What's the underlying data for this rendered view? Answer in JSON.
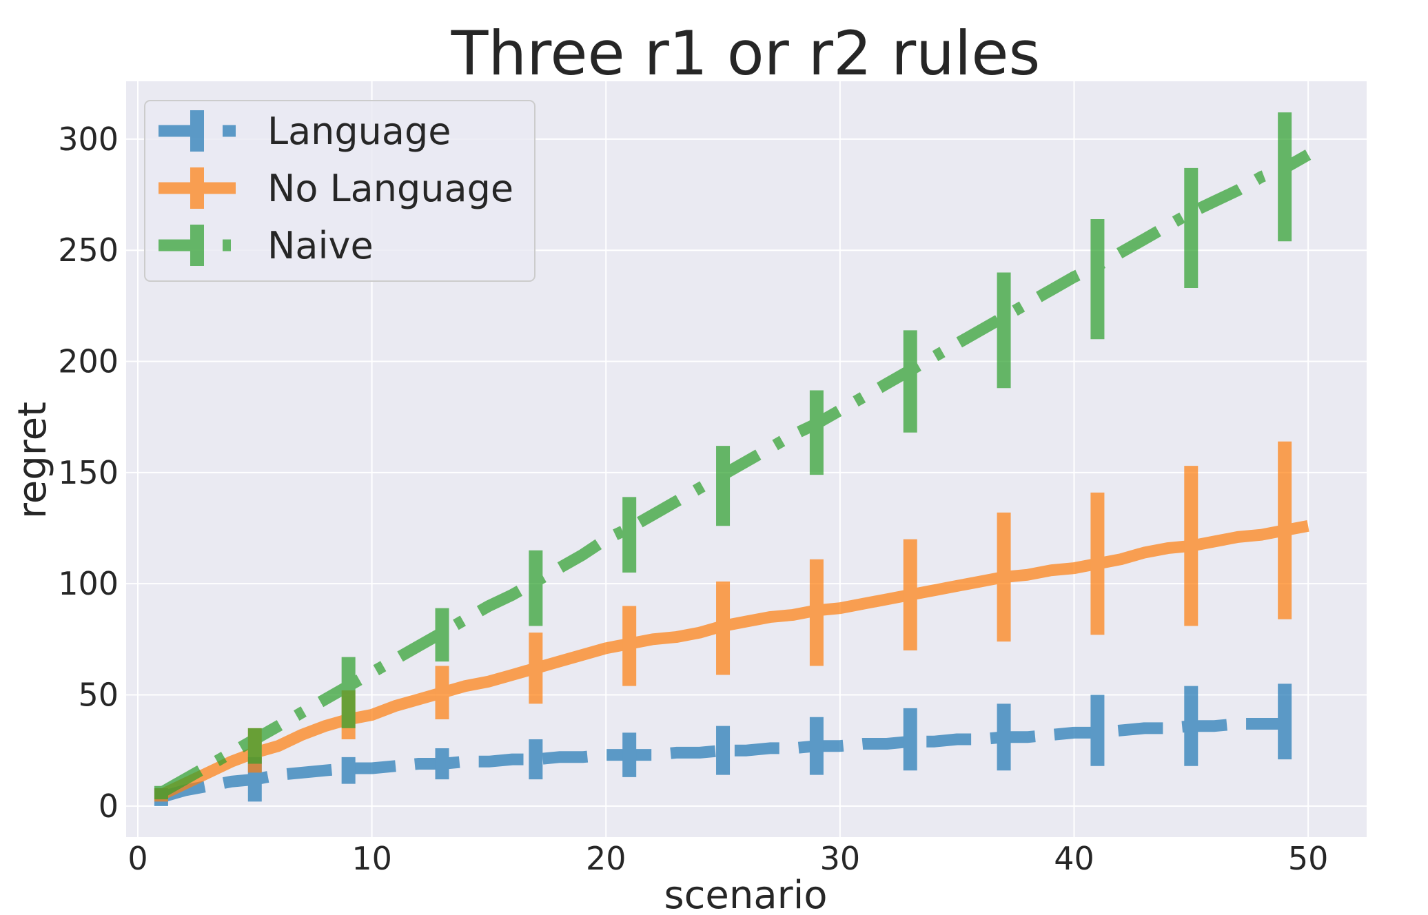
{
  "chart_data": {
    "type": "line",
    "title": "Three r1 or r2 rules",
    "xlabel": "scenario",
    "ylabel": "regret",
    "xlim": [
      -0.5,
      52.5
    ],
    "ylim": [
      -14,
      326
    ],
    "xticks": [
      0,
      10,
      20,
      30,
      40,
      50
    ],
    "yticks": [
      0,
      50,
      100,
      150,
      200,
      250,
      300
    ],
    "grid": true,
    "legend_position": "top-left",
    "x": [
      1,
      2,
      3,
      4,
      5,
      6,
      7,
      8,
      9,
      10,
      11,
      12,
      13,
      14,
      15,
      16,
      17,
      18,
      19,
      20,
      21,
      22,
      23,
      24,
      25,
      26,
      27,
      28,
      29,
      30,
      31,
      32,
      33,
      34,
      35,
      36,
      37,
      38,
      39,
      40,
      41,
      42,
      43,
      44,
      45,
      46,
      47,
      48,
      49,
      50
    ],
    "errorbar_x": [
      1,
      5,
      9,
      13,
      17,
      21,
      25,
      29,
      33,
      37,
      41,
      45,
      49
    ],
    "series": [
      {
        "name": "Language",
        "color": "#1f77b4",
        "linestyle": "dashed",
        "values": [
          4,
          7,
          9,
          11,
          12,
          14,
          15,
          16,
          17,
          17,
          18,
          19,
          19,
          20,
          20,
          21,
          21,
          22,
          22,
          23,
          23,
          23,
          24,
          24,
          25,
          25,
          26,
          26,
          27,
          27,
          28,
          28,
          29,
          29,
          30,
          30,
          31,
          31,
          32,
          33,
          33,
          34,
          35,
          35,
          36,
          36,
          37,
          37,
          37,
          38
        ],
        "errorbar_center": [
          4,
          12,
          16,
          19,
          21,
          23,
          25,
          27,
          30,
          31,
          34,
          36,
          38
        ],
        "errorbar_err": [
          4,
          10,
          6,
          7,
          9,
          10,
          11,
          13,
          14,
          15,
          16,
          18,
          17
        ]
      },
      {
        "name": "No Language",
        "color": "#ff7f0e",
        "linestyle": "solid",
        "values": [
          5,
          10,
          15,
          20,
          24,
          27,
          32,
          36,
          39,
          41,
          45,
          48,
          51,
          54,
          56,
          59,
          62,
          65,
          68,
          71,
          73,
          75,
          76,
          78,
          81,
          83,
          85,
          86,
          88,
          89,
          91,
          93,
          95,
          97,
          99,
          101,
          103,
          104,
          106,
          107,
          109,
          111,
          114,
          116,
          117,
          119,
          121,
          122,
          124,
          126
        ],
        "errorbar_center": [
          5,
          25,
          41,
          51,
          62,
          72,
          80,
          87,
          95,
          103,
          109,
          117,
          124
        ],
        "errorbar_err": [
          3,
          10,
          11,
          12,
          16,
          18,
          21,
          24,
          25,
          29,
          32,
          36,
          40
        ]
      },
      {
        "name": "Naive",
        "color": "#2ca02c",
        "linestyle": "dashdot",
        "values": [
          6,
          12,
          18,
          24,
          30,
          36,
          42,
          48,
          54,
          60,
          66,
          72,
          78,
          84,
          90,
          95,
          101,
          107,
          113,
          120,
          125,
          131,
          137,
          143,
          149,
          155,
          161,
          167,
          172,
          178,
          184,
          190,
          196,
          202,
          208,
          214,
          220,
          226,
          232,
          238,
          243,
          249,
          255,
          261,
          267,
          272,
          277,
          283,
          287,
          293
        ],
        "errorbar_center": [
          6,
          27,
          51,
          77,
          98,
          122,
          144,
          168,
          191,
          214,
          237,
          260,
          283
        ],
        "errorbar_err": [
          3,
          8,
          16,
          12,
          17,
          17,
          18,
          19,
          23,
          26,
          27,
          27,
          29
        ]
      }
    ]
  }
}
